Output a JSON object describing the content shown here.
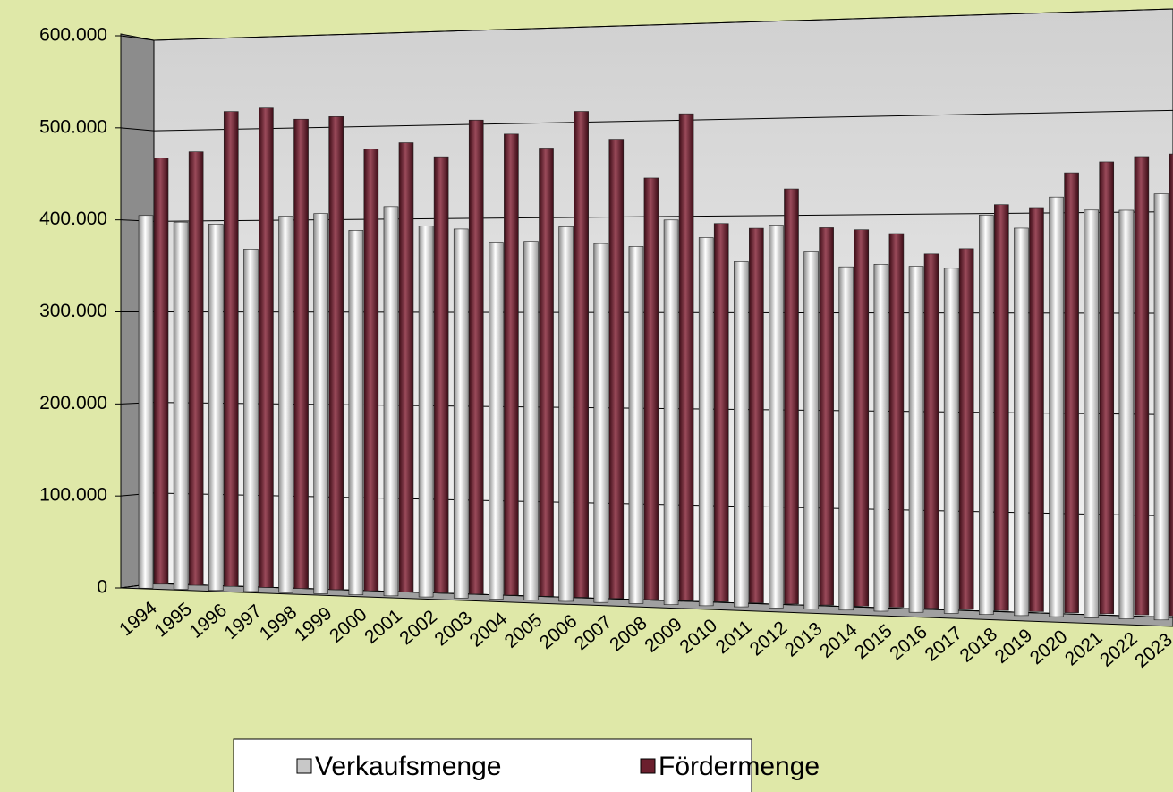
{
  "chart_data": {
    "type": "bar3d",
    "categories": [
      "1994",
      "1995",
      "1996",
      "1997",
      "1998",
      "1999",
      "2000",
      "2001",
      "2002",
      "2003",
      "2004",
      "2005",
      "2006",
      "2007",
      "2008",
      "2009",
      "2010",
      "2011",
      "2012",
      "2013",
      "2014",
      "2015",
      "2016",
      "2017",
      "2018",
      "2019",
      "2020",
      "2021",
      "2022",
      "2023"
    ],
    "series": [
      {
        "name": "Verkaufsmenge",
        "color": "#c8c8c8",
        "values": [
          405000,
          399000,
          398000,
          372000,
          409000,
          413000,
          396000,
          423000,
          403000,
          401000,
          388000,
          390000,
          407000,
          390000,
          388000,
          418000,
          400000,
          375000,
          416000,
          388000,
          373000,
          377000,
          376000,
          375000,
          434000,
          421000,
          456000,
          443000,
          444000,
          463000
        ]
      },
      {
        "name": "Fördermenge",
        "color": "#6b1f2e",
        "values": [
          463000,
          471000,
          516000,
          521000,
          510000,
          514000,
          480000,
          488000,
          474000,
          515000,
          501000,
          487000,
          528000,
          499000,
          458000,
          529000,
          411000,
          407000,
          451000,
          410000,
          409000,
          406000,
          385000,
          392000,
          441000,
          439000,
          478000,
          491000,
          498000,
          502000
        ]
      }
    ],
    "ylim": [
      0,
      600000
    ],
    "yticks": [
      0,
      {
        "value": 100000,
        "label": "100.000"
      },
      {
        "value": 200000,
        "label": "200.000"
      },
      {
        "value": 300000,
        "label": "300.000"
      },
      {
        "value": 400000,
        "label": "400.000"
      },
      {
        "value": 500000,
        "label": "500.000"
      },
      {
        "value": 600000,
        "label": "600.000"
      }
    ],
    "grid": true,
    "legend": "bottom"
  }
}
